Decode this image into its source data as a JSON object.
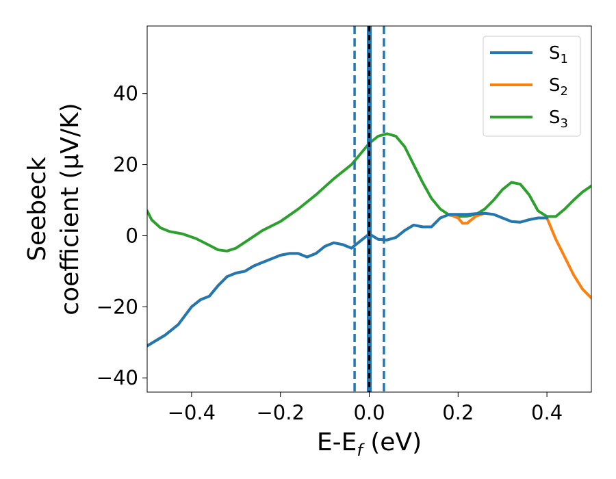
{
  "chart_data": {
    "type": "line",
    "xlabel": {
      "main": "E-E",
      "sub": "f",
      "unit": " (eV)"
    },
    "ylabel": {
      "line1": "Seebeck",
      "line2": "coefficient  (μV/K)"
    },
    "xlim": [
      -0.5,
      0.5
    ],
    "ylim": [
      -44,
      59
    ],
    "xticks": [
      -0.4,
      -0.2,
      0.0,
      0.2,
      0.4
    ],
    "xtick_labels": [
      "−0.4",
      "−0.2",
      "0.0",
      "0.2",
      "0.4"
    ],
    "yticks": [
      -40,
      -20,
      0,
      20,
      40
    ],
    "ytick_labels": [
      "−40",
      "−20",
      "0",
      "20",
      "40"
    ],
    "grid": false,
    "legend_position": "top-right",
    "vertical_lines": [
      {
        "x": -0.033,
        "style": "dashed",
        "color": "#1f77b4"
      },
      {
        "x": 0.033,
        "style": "dashed",
        "color": "#1f77b4"
      },
      {
        "x": 0.0,
        "style": "solid",
        "color": "#1f77b4"
      },
      {
        "x": 0.0,
        "style": "dashed",
        "color": "#000000"
      }
    ],
    "series": [
      {
        "name": "S",
        "sub": "3",
        "color": "#2ca02c",
        "x": [
          -0.5,
          -0.49,
          -0.47,
          -0.45,
          -0.42,
          -0.39,
          -0.36,
          -0.34,
          -0.32,
          -0.3,
          -0.27,
          -0.24,
          -0.2,
          -0.16,
          -0.12,
          -0.08,
          -0.04,
          -0.02,
          0.0,
          0.02,
          0.04,
          0.06,
          0.08,
          0.1,
          0.12,
          0.14,
          0.16,
          0.18,
          0.2,
          0.22,
          0.24,
          0.26,
          0.28,
          0.3,
          0.32,
          0.34,
          0.36,
          0.38,
          0.4,
          0.42,
          0.44,
          0.46,
          0.48,
          0.5
        ],
        "y": [
          7,
          4.5,
          2.2,
          1.2,
          0.5,
          -0.8,
          -2.7,
          -4,
          -4.3,
          -3.5,
          -1,
          1.5,
          4,
          7.5,
          11.5,
          16,
          20,
          23,
          26,
          28,
          28.7,
          28,
          25,
          20,
          15,
          10.5,
          7.5,
          5.8,
          5.4,
          5.5,
          6,
          7.5,
          10,
          13,
          15,
          14.5,
          11.5,
          7,
          5.4,
          5.4,
          7.5,
          10,
          12.3,
          14
        ]
      },
      {
        "name": "S",
        "sub": "2",
        "color": "#ff7f0e",
        "x": [
          -0.5,
          -0.46,
          -0.43,
          -0.4,
          -0.38,
          -0.36,
          -0.34,
          -0.32,
          -0.3,
          -0.28,
          -0.26,
          -0.24,
          -0.22,
          -0.2,
          -0.18,
          -0.16,
          -0.14,
          -0.12,
          -0.1,
          -0.08,
          -0.06,
          -0.04,
          -0.02,
          0.0,
          0.02,
          0.04,
          0.06,
          0.08,
          0.1,
          0.12,
          0.14,
          0.16,
          0.18,
          0.2,
          0.21,
          0.22,
          0.24,
          0.26,
          0.28,
          0.3,
          0.32,
          0.34,
          0.36,
          0.38,
          0.4,
          0.42,
          0.44,
          0.46,
          0.48,
          0.5
        ],
        "y": [
          -31,
          -28,
          -25,
          -20,
          -18,
          -17,
          -14,
          -11.5,
          -10.5,
          -10,
          -8.5,
          -7.5,
          -6.5,
          -5.5,
          -5,
          -5,
          -6,
          -5,
          -3,
          -2,
          -2.5,
          -3.5,
          -1.5,
          0.5,
          -1,
          -1.2,
          -0.5,
          1.5,
          3,
          2.5,
          2.5,
          5,
          6,
          5,
          3.5,
          3.5,
          5.5,
          6.3,
          6,
          5,
          4,
          3.8,
          4.5,
          5,
          5,
          -1,
          -6,
          -11,
          -15,
          -17.5
        ]
      },
      {
        "name": "S",
        "sub": "1",
        "color": "#1f77b4",
        "x": [
          -0.5,
          -0.46,
          -0.43,
          -0.4,
          -0.38,
          -0.36,
          -0.34,
          -0.32,
          -0.3,
          -0.28,
          -0.26,
          -0.24,
          -0.22,
          -0.2,
          -0.18,
          -0.16,
          -0.14,
          -0.12,
          -0.1,
          -0.08,
          -0.06,
          -0.04,
          -0.02,
          0.0,
          0.02,
          0.04,
          0.06,
          0.08,
          0.1,
          0.12,
          0.14,
          0.16,
          0.18,
          0.2,
          0.22,
          0.24,
          0.26,
          0.28,
          0.3,
          0.32,
          0.34,
          0.36,
          0.38,
          0.4
        ],
        "y": [
          -31,
          -28,
          -25,
          -20,
          -18,
          -17,
          -14,
          -11.5,
          -10.5,
          -10,
          -8.5,
          -7.5,
          -6.5,
          -5.5,
          -5,
          -5,
          -6,
          -5,
          -3,
          -2,
          -2.5,
          -3.5,
          -1.5,
          0.5,
          -1,
          -1.2,
          -0.5,
          1.5,
          3,
          2.5,
          2.5,
          5,
          6,
          6,
          6,
          6.2,
          6.3,
          6,
          5,
          4,
          3.8,
          4.5,
          5,
          5
        ]
      }
    ]
  }
}
